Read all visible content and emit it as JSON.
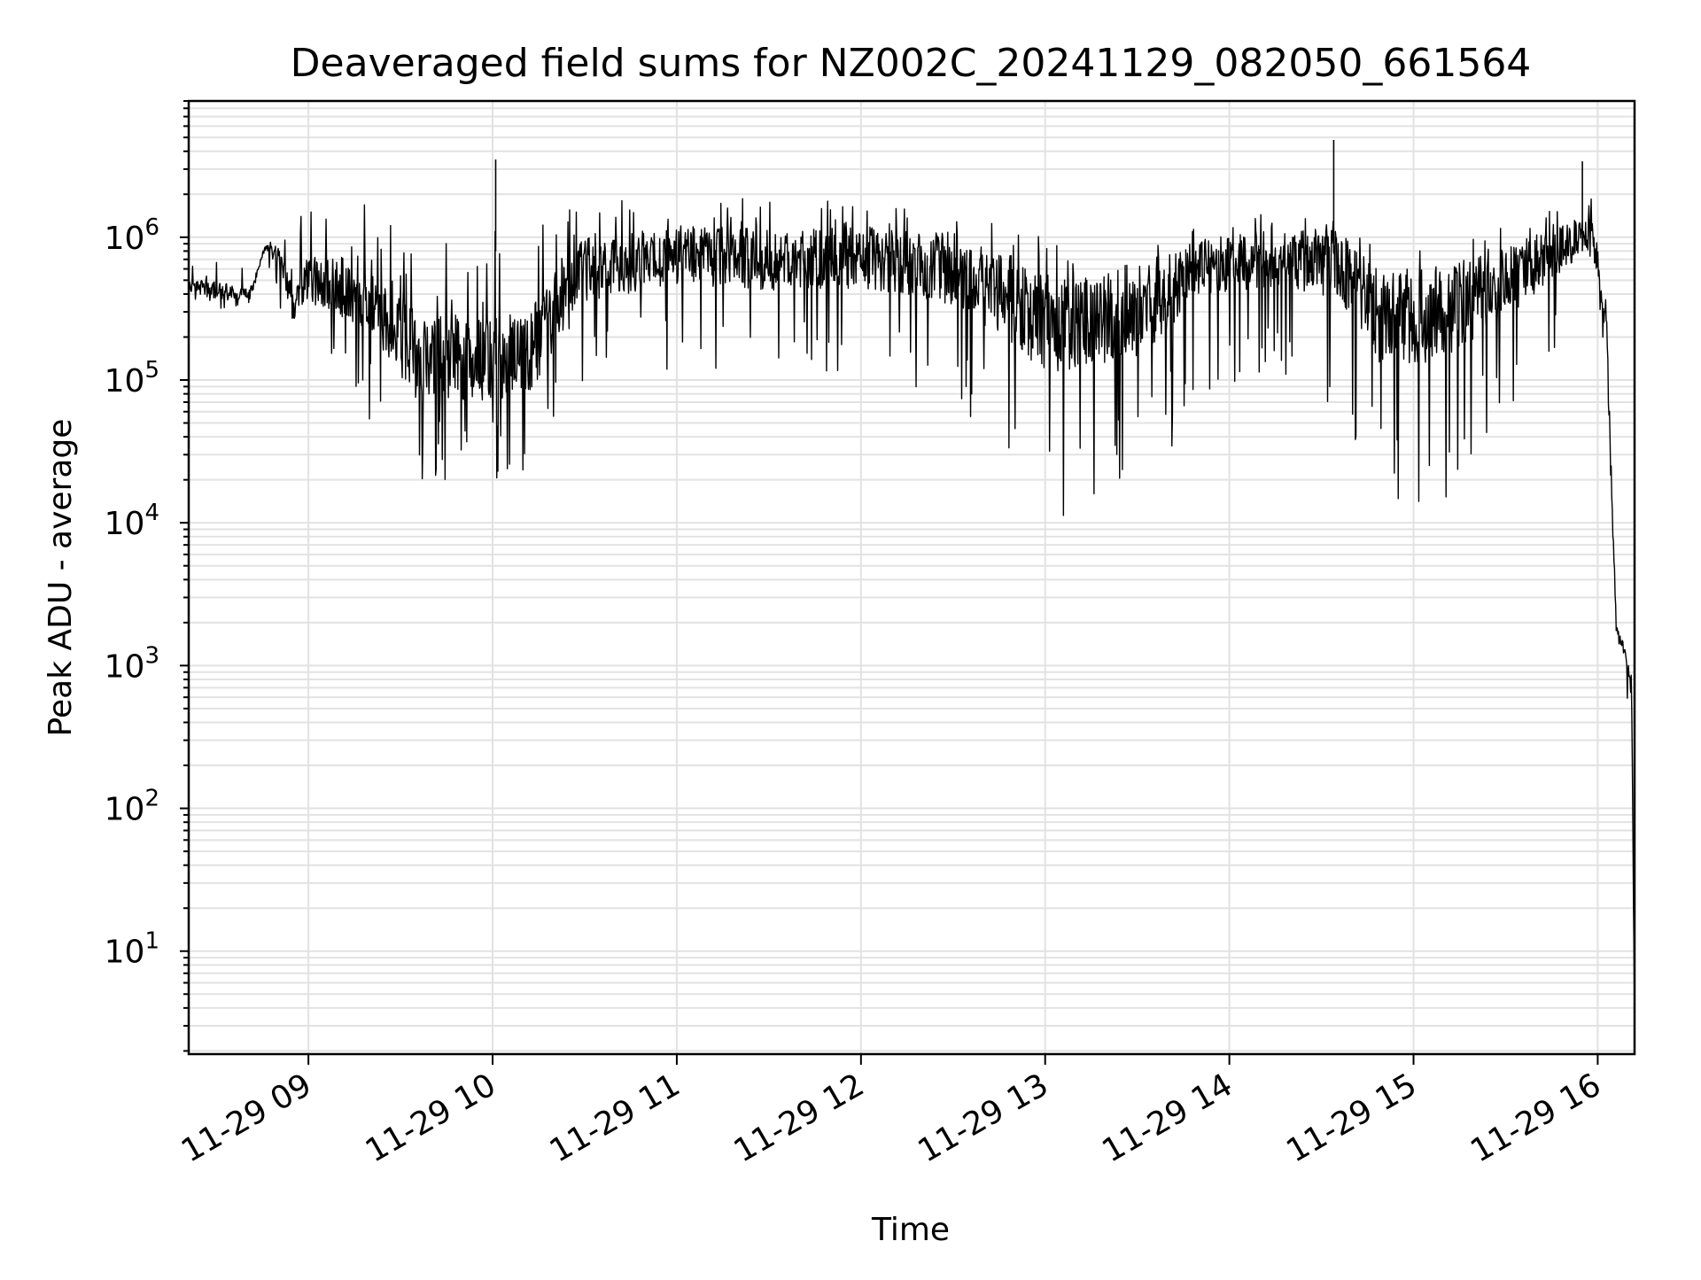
{
  "chart_data": {
    "type": "line",
    "title": "Deaveraged field sums for NZ002C_20241129_082050_661564",
    "xlabel": "Time",
    "ylabel": "Peak ADU - average",
    "yscale": "log",
    "ylim": [
      1.9,
      9000000
    ],
    "xlim": [
      "11-29 08:21",
      "11-29 16:12"
    ],
    "x_tick_labels": [
      "11-29 09",
      "11-29 10",
      "11-29 11",
      "11-29 12",
      "11-29 13",
      "11-29 14",
      "11-29 15",
      "11-29 16"
    ],
    "x_tick_times": [
      "11-29 09:00",
      "11-29 10:00",
      "11-29 11:00",
      "11-29 12:00",
      "11-29 13:00",
      "11-29 14:00",
      "11-29 15:00",
      "11-29 16:00"
    ],
    "y_tick_exponents": [
      "1",
      "2",
      "3",
      "4",
      "5",
      "6"
    ],
    "y_tick_values": [
      10,
      100,
      1000,
      10000,
      100000,
      1000000
    ],
    "grid": true,
    "series": [
      {
        "color": "#000000",
        "x": [
          "11-29 08:21",
          "11-29 08:30",
          "11-29 08:41",
          "11-29 08:46",
          "11-29 08:51",
          "11-29 08:55",
          "11-29 09:00",
          "11-29 09:20",
          "11-29 09:35",
          "11-29 10:00",
          "11-29 10:15",
          "11-29 10:30",
          "11-29 11:00",
          "11-29 11:30",
          "11-29 12:00",
          "11-29 12:30",
          "11-29 12:45",
          "11-29 13:00",
          "11-29 13:30",
          "11-29 13:50",
          "11-29 14:15",
          "11-29 14:35",
          "11-29 14:50",
          "11-29 15:10",
          "11-29 15:30",
          "11-29 15:50",
          "11-29 15:55",
          "11-29 15:59",
          "11-29 16:03",
          "11-29 16:06",
          "11-29 16:09",
          "11-29 16:11",
          "11-29 16:12"
        ],
        "y": [
          450000,
          420000,
          400000,
          850000,
          700000,
          320000,
          500000,
          400000,
          150000,
          130000,
          180000,
          600000,
          750000,
          700000,
          720000,
          600000,
          400000,
          250000,
          300000,
          600000,
          700000,
          650000,
          260000,
          300000,
          480000,
          850000,
          1100000,
          900000,
          200000,
          1800,
          1200,
          700,
          3.8
        ],
        "min_envelope": [
          380000,
          300000,
          350000,
          750000,
          300000,
          250000,
          180000,
          50000,
          20000,
          20000,
          22000,
          100000,
          120000,
          110000,
          100000,
          70000,
          30000,
          10000,
          11000,
          80000,
          120000,
          60000,
          9000,
          12000,
          50000,
          200000,
          400000,
          300000,
          150000,
          900,
          900,
          200,
          3.8
        ],
        "max_envelope": [
          650000,
          700000,
          600000,
          1000000,
          900000,
          1300000,
          1800000,
          1700000,
          1200000,
          1200000,
          1200000,
          2200000,
          1700000,
          2000000,
          1700000,
          2000000,
          1300000,
          1000000,
          900000,
          1200000,
          1500000,
          1700000,
          900000,
          900000,
          1200000,
          1700000,
          1800000,
          2000000,
          600000,
          2100,
          1500,
          1000,
          3.8
        ]
      }
    ],
    "spikes": [
      {
        "x": "11-29 10:01",
        "y": 3500000
      },
      {
        "x": "11-29 14:34",
        "y": 4800000
      },
      {
        "x": "11-29 15:55",
        "y": 3400000
      }
    ]
  }
}
